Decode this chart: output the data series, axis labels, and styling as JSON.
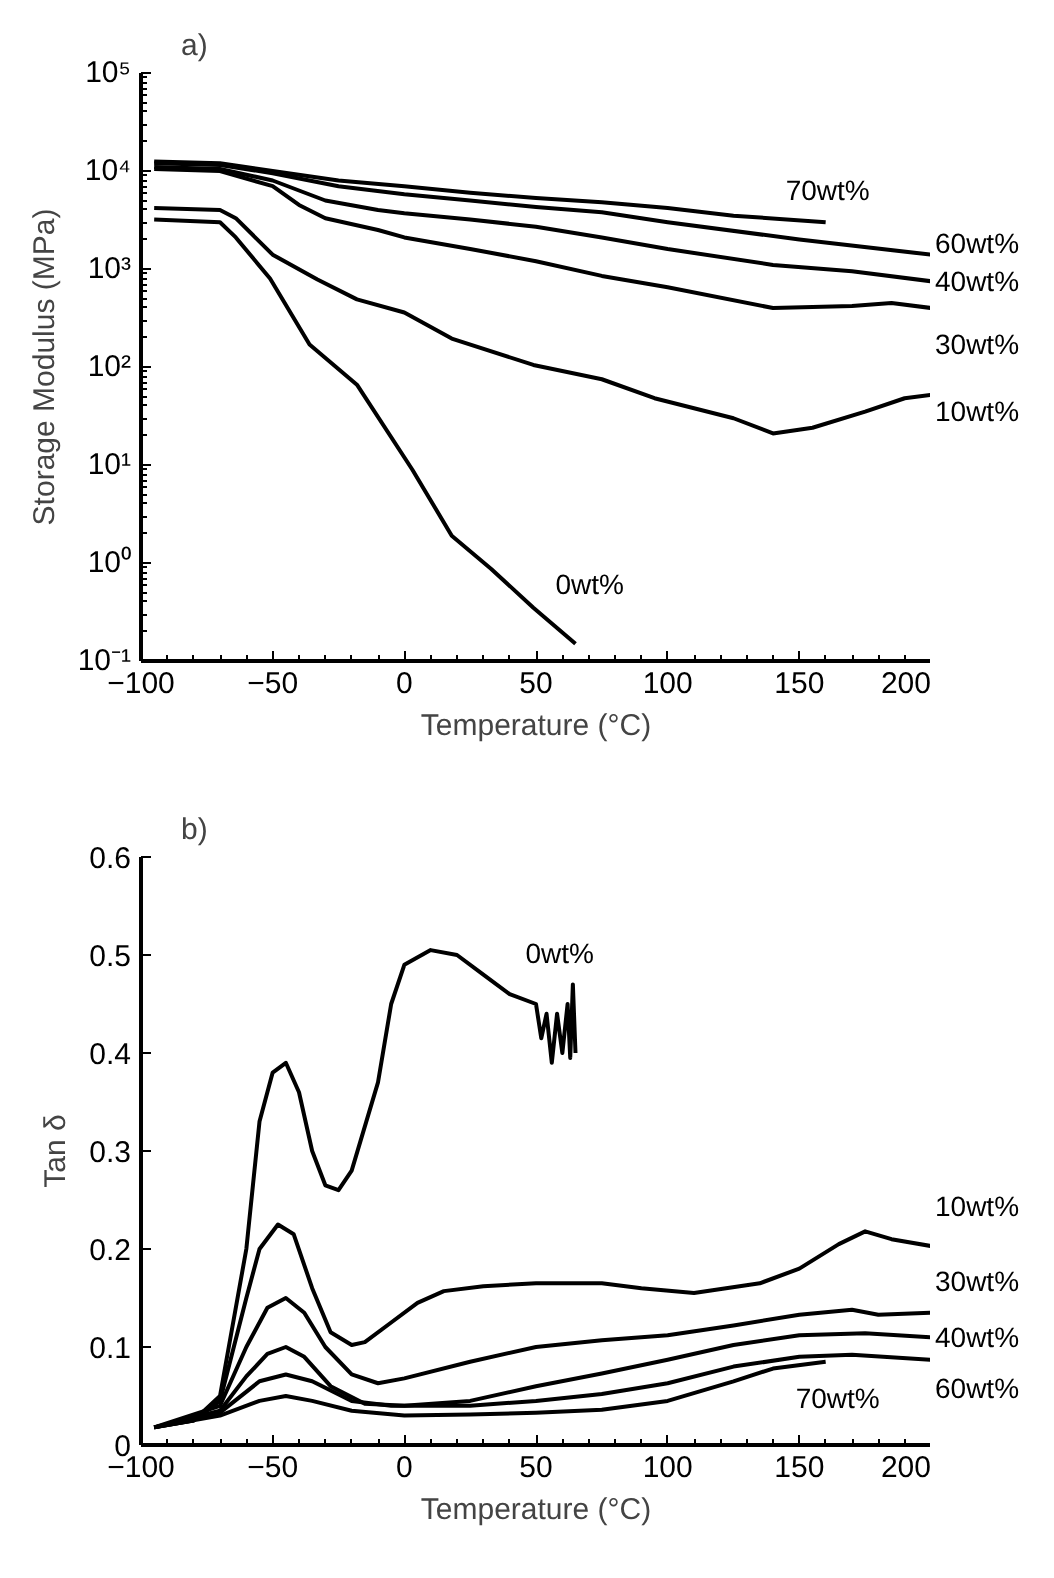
{
  "chart_data": [
    {
      "type": "line",
      "title": "a)",
      "xlabel": "Temperature (°C)",
      "ylabel": "Storage Modulus (MPa)",
      "log": "y",
      "grid": false,
      "legend": false,
      "xlim": [
        -100,
        200
      ],
      "xticks": [
        -100,
        -50,
        0,
        50,
        100,
        150,
        200
      ],
      "ylim": [
        0.1,
        100000
      ],
      "yticks": [
        {
          "value": 0.1,
          "label": "10⁻¹"
        },
        {
          "value": 1,
          "label": "10⁰"
        },
        {
          "value": 10,
          "label": "10¹"
        },
        {
          "value": 100,
          "label": "10²"
        },
        {
          "value": 1000,
          "label": "10³"
        },
        {
          "value": 10000,
          "label": "10⁴"
        },
        {
          "value": 100000,
          "label": "10⁵"
        }
      ],
      "series": [
        {
          "name": "70wt%",
          "color": "#000000",
          "x": [
            -95,
            -70,
            -50,
            -25,
            0,
            25,
            50,
            75,
            100,
            125,
            160
          ],
          "values": [
            12500,
            12000,
            10000,
            8000,
            7000,
            6000,
            5300,
            4800,
            4200,
            3500,
            3000
          ]
        },
        {
          "name": "60wt%",
          "color": "#000000",
          "x": [
            -95,
            -70,
            -50,
            -25,
            0,
            25,
            50,
            75,
            100,
            150,
            200
          ],
          "values": [
            12000,
            11500,
            9500,
            7000,
            5800,
            5000,
            4300,
            3800,
            3000,
            2000,
            1400
          ]
        },
        {
          "name": "40wt%",
          "color": "#000000",
          "x": [
            -95,
            -70,
            -50,
            -30,
            -10,
            0,
            25,
            50,
            75,
            100,
            140,
            170,
            200
          ],
          "values": [
            11000,
            10500,
            8000,
            5000,
            4000,
            3700,
            3200,
            2700,
            2100,
            1600,
            1100,
            950,
            750
          ]
        },
        {
          "name": "30wt%",
          "color": "#000000",
          "x": [
            -95,
            -70,
            -50,
            -40,
            -30,
            -10,
            0,
            25,
            50,
            75,
            100,
            140,
            170,
            185,
            200
          ],
          "values": [
            10500,
            10000,
            7000,
            4500,
            3300,
            2500,
            2100,
            1600,
            1200,
            850,
            650,
            400,
            420,
            450,
            400
          ]
        },
        {
          "name": "10wt%",
          "color": "#000000",
          "x": [
            -95,
            -70,
            -64,
            -50,
            -33,
            -18,
            0,
            18,
            49,
            75,
            95,
            125,
            140,
            155,
            175,
            190,
            200
          ],
          "values": [
            4200,
            4000,
            3300,
            1400,
            780,
            490,
            360,
            195,
            105,
            75,
            48,
            30,
            21,
            24,
            35,
            48,
            52
          ]
        },
        {
          "name": "0wt%",
          "color": "#000000",
          "x": [
            -95,
            -70,
            -64,
            -51,
            -36,
            -18,
            3,
            18,
            33,
            49,
            65
          ],
          "values": [
            3200,
            3000,
            2100,
            800,
            170,
            66,
            9,
            1.9,
            0.87,
            0.35,
            0.15
          ]
        }
      ]
    },
    {
      "type": "line",
      "title": "b)",
      "xlabel": "Temperature (°C)",
      "ylabel": "Tan δ",
      "grid": false,
      "legend": false,
      "xlim": [
        -100,
        200
      ],
      "xticks": [
        -100,
        -50,
        0,
        50,
        100,
        150,
        200
      ],
      "ylim": [
        0,
        0.6
      ],
      "yticks": [
        0,
        0.1,
        0.2,
        0.3,
        0.4,
        0.5,
        0.6
      ],
      "series": [
        {
          "name": "0wt%",
          "color": "#000000",
          "x": [
            -95,
            -80,
            -70,
            -60,
            -55,
            -50,
            -45,
            -40,
            -35,
            -30,
            -25,
            -20,
            -10,
            -5,
            0,
            10,
            20,
            30,
            40,
            50,
            52,
            54,
            56,
            58,
            60,
            62,
            63,
            64,
            65
          ],
          "values": [
            0.018,
            0.025,
            0.05,
            0.2,
            0.33,
            0.38,
            0.39,
            0.36,
            0.3,
            0.265,
            0.26,
            0.28,
            0.37,
            0.45,
            0.49,
            0.505,
            0.5,
            0.48,
            0.46,
            0.45,
            0.415,
            0.44,
            0.39,
            0.44,
            0.4,
            0.45,
            0.395,
            0.47,
            0.4
          ]
        },
        {
          "name": "10wt%",
          "color": "#000000",
          "x": [
            -95,
            -80,
            -70,
            -60,
            -55,
            -48,
            -42,
            -35,
            -28,
            -20,
            -15,
            -5,
            5,
            15,
            30,
            50,
            75,
            90,
            110,
            135,
            150,
            165,
            175,
            185,
            200
          ],
          "values": [
            0.018,
            0.025,
            0.045,
            0.15,
            0.2,
            0.225,
            0.215,
            0.16,
            0.115,
            0.102,
            0.105,
            0.125,
            0.145,
            0.157,
            0.162,
            0.165,
            0.165,
            0.16,
            0.155,
            0.165,
            0.18,
            0.205,
            0.218,
            0.21,
            0.203
          ]
        },
        {
          "name": "30wt%",
          "color": "#000000",
          "x": [
            -95,
            -70,
            -60,
            -52,
            -45,
            -38,
            -30,
            -20,
            -10,
            0,
            25,
            50,
            75,
            100,
            125,
            150,
            170,
            180,
            200
          ],
          "values": [
            0.018,
            0.04,
            0.1,
            0.14,
            0.15,
            0.135,
            0.1,
            0.072,
            0.063,
            0.068,
            0.085,
            0.1,
            0.107,
            0.112,
            0.122,
            0.133,
            0.138,
            0.133,
            0.135
          ]
        },
        {
          "name": "40wt%",
          "color": "#000000",
          "x": [
            -95,
            -70,
            -60,
            -52,
            -45,
            -38,
            -28,
            -15,
            0,
            25,
            50,
            75,
            100,
            125,
            150,
            175,
            200
          ],
          "values": [
            0.018,
            0.035,
            0.07,
            0.093,
            0.1,
            0.09,
            0.06,
            0.042,
            0.04,
            0.045,
            0.06,
            0.073,
            0.087,
            0.102,
            0.112,
            0.114,
            0.11
          ]
        },
        {
          "name": "60wt%",
          "color": "#000000",
          "x": [
            -95,
            -70,
            -55,
            -45,
            -35,
            -20,
            -5,
            25,
            50,
            75,
            100,
            125,
            150,
            170,
            200
          ],
          "values": [
            0.018,
            0.033,
            0.065,
            0.072,
            0.065,
            0.045,
            0.04,
            0.04,
            0.045,
            0.052,
            0.063,
            0.08,
            0.09,
            0.092,
            0.087
          ]
        },
        {
          "name": "70wt%",
          "color": "#000000",
          "x": [
            -95,
            -70,
            -55,
            -45,
            -35,
            -20,
            0,
            25,
            50,
            75,
            100,
            125,
            140,
            160
          ],
          "values": [
            0.018,
            0.03,
            0.045,
            0.05,
            0.045,
            0.035,
            0.03,
            0.031,
            0.033,
            0.036,
            0.045,
            0.065,
            0.078,
            0.085
          ]
        }
      ]
    }
  ]
}
